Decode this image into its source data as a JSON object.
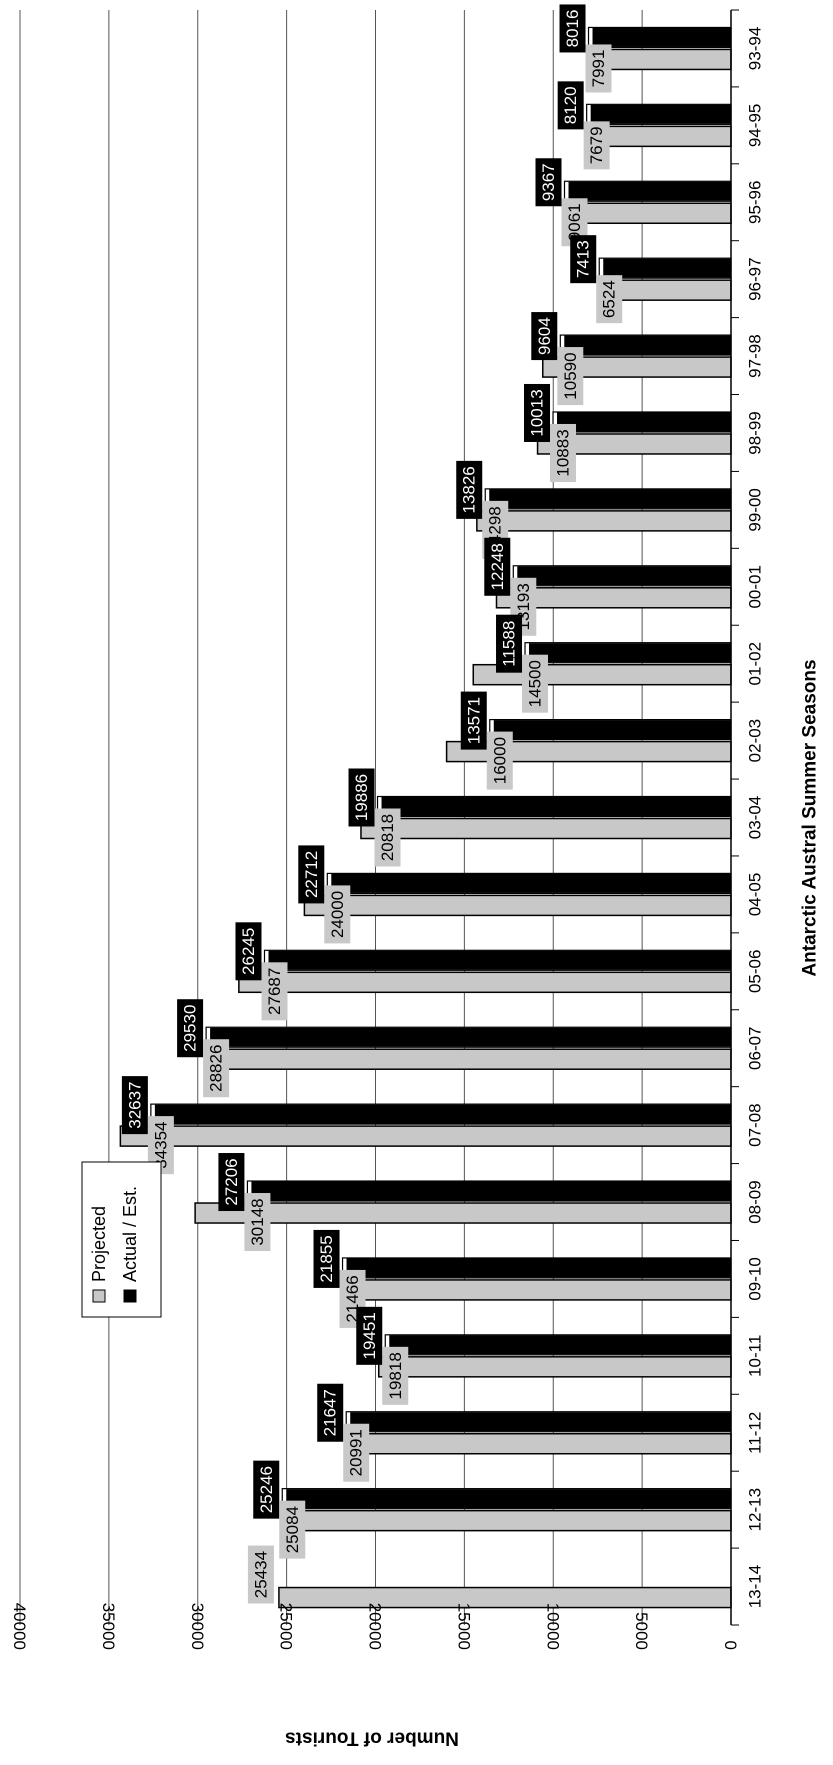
{
  "chart_data": {
    "type": "bar",
    "orientation": "vertical-rotated",
    "xlabel": "Antarctic Austral Summer Seasons",
    "ylabel": "Number of Tourists",
    "ylim": [
      0,
      40000
    ],
    "yticks": [
      0,
      5000,
      10000,
      15000,
      20000,
      25000,
      30000,
      35000,
      40000
    ],
    "grid": true,
    "legend_position": "upper-left",
    "categories": [
      "93-94",
      "94-95",
      "95-96",
      "96-97",
      "97-98",
      "98-99",
      "99-00",
      "00-01",
      "01-02",
      "02-03",
      "03-04",
      "04-05",
      "05-06",
      "06-07",
      "07-08",
      "08-09",
      "09-10",
      "10-11",
      "11-12",
      "12-13",
      "13-14"
    ],
    "series": [
      {
        "name": "Projected",
        "color": "#c8c8c8",
        "values": [
          7991,
          7679,
          9061,
          6524,
          10590,
          10883,
          14298,
          13193,
          14500,
          16000,
          20818,
          24000,
          27687,
          28826,
          34354,
          30148,
          21466,
          19818,
          20991,
          25084,
          25434
        ]
      },
      {
        "name": "Actual / Est.",
        "color": "#000000",
        "values": [
          8016,
          8120,
          9367,
          7413,
          9604,
          10013,
          13826,
          12248,
          11588,
          13571,
          19886,
          22712,
          26245,
          29530,
          32637,
          27206,
          21855,
          19451,
          21647,
          25246,
          null
        ]
      }
    ]
  }
}
